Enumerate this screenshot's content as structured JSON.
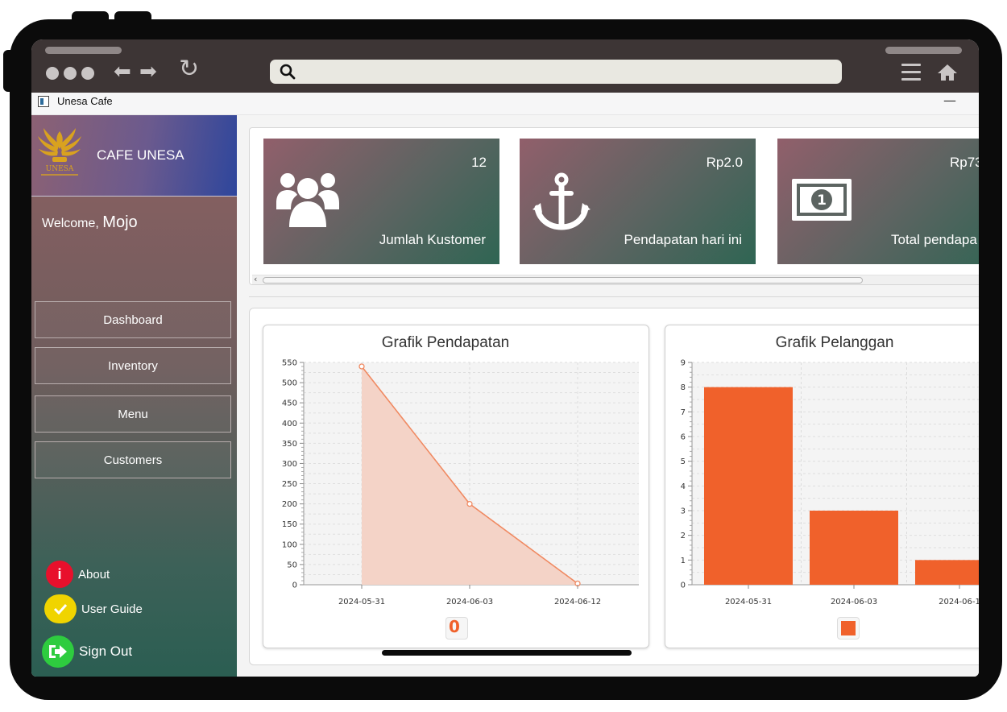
{
  "app": {
    "title": "Unesa Cafe",
    "minimize_glyph": "—"
  },
  "browser": {
    "back_glyph": "⬅",
    "forward_glyph": "➡",
    "reload_glyph": "↻"
  },
  "sidebar": {
    "brand": "CAFE UNESA",
    "logo_text": "UNESA",
    "welcome_prefix": "Welcome,",
    "user": "Mojo",
    "nav": [
      {
        "label": "Dashboard"
      },
      {
        "label": "Inventory"
      },
      {
        "label": "Menu"
      },
      {
        "label": "Customers"
      }
    ],
    "footer": {
      "about": "About",
      "user_guide": "User Guide",
      "sign_out": "Sign Out"
    }
  },
  "cards": [
    {
      "value": "12",
      "label": "Jumlah Kustomer",
      "icon": "users-icon"
    },
    {
      "value": "Rp2.0",
      "label": "Pendapatan hari ini",
      "icon": "anchor-icon"
    },
    {
      "value": "Rp73",
      "label": "Total pendapa",
      "icon": "money-icon"
    }
  ],
  "colors": {
    "accent": "#f0612b",
    "area_fill": "#f4d3c7",
    "area_line": "#f08a62"
  },
  "chart_data": [
    {
      "type": "area",
      "title": "Grafik Pendapatan",
      "x": [
        "2024-05-31",
        "2024-06-03",
        "2024-06-12"
      ],
      "values": [
        540,
        200,
        3
      ],
      "ylim": [
        0,
        550
      ],
      "yticks": [
        0,
        50,
        100,
        150,
        200,
        250,
        300,
        350,
        400,
        450,
        500,
        550
      ],
      "grid": true,
      "legend_label": "0"
    },
    {
      "type": "bar",
      "title": "Grafik Pelanggan",
      "categories": [
        "2024-05-31",
        "2024-06-03",
        "2024-06-1"
      ],
      "values": [
        8,
        3,
        1
      ],
      "ylim": [
        0,
        9
      ],
      "yticks": [
        0,
        1,
        2,
        3,
        4,
        5,
        6,
        7,
        8,
        9
      ],
      "grid": true
    }
  ]
}
